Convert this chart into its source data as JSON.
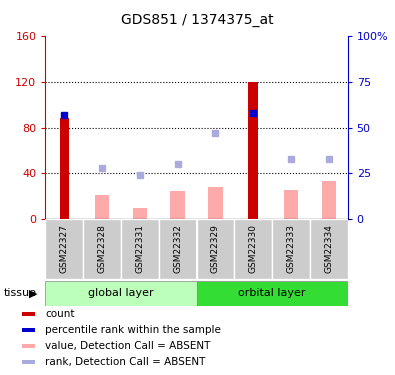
{
  "title": "GDS851 / 1374375_at",
  "samples": [
    "GSM22327",
    "GSM22328",
    "GSM22331",
    "GSM22332",
    "GSM22329",
    "GSM22330",
    "GSM22333",
    "GSM22334"
  ],
  "red_bars": [
    88,
    0,
    0,
    0,
    0,
    120,
    0,
    0
  ],
  "blue_squares_pct": [
    57,
    null,
    null,
    null,
    null,
    58,
    null,
    null
  ],
  "pink_bars": [
    null,
    21,
    10,
    25,
    28,
    null,
    26,
    33
  ],
  "light_blue_squares_pct": [
    null,
    28,
    24,
    30,
    47,
    null,
    33,
    33
  ],
  "ylim_left": [
    0,
    160
  ],
  "ylim_right": [
    0,
    100
  ],
  "left_yticks": [
    0,
    40,
    80,
    120,
    160
  ],
  "right_yticks": [
    0,
    25,
    50,
    75,
    100
  ],
  "right_yticklabels": [
    "0",
    "25",
    "50",
    "75",
    "100%"
  ],
  "tissue_groups": [
    {
      "label": "global layer",
      "start": 0,
      "end": 4,
      "color": "#BBFFBB"
    },
    {
      "label": "orbital layer",
      "start": 4,
      "end": 8,
      "color": "#33DD33"
    }
  ],
  "red_color": "#CC0000",
  "blue_color": "#0000CC",
  "pink_color": "#FFAAAA",
  "light_blue_color": "#AAAADD",
  "left_axis_color": "#CC0000",
  "right_axis_color": "#0000CC",
  "legend_items": [
    {
      "color": "#CC0000",
      "label": "count"
    },
    {
      "color": "#0000CC",
      "label": "percentile rank within the sample"
    },
    {
      "color": "#FFAAAA",
      "label": "value, Detection Call = ABSENT"
    },
    {
      "color": "#AAAADD",
      "label": "rank, Detection Call = ABSENT"
    }
  ],
  "gray_label_color": "#CCCCCC",
  "grid_dotted_at": [
    40,
    80,
    120
  ]
}
